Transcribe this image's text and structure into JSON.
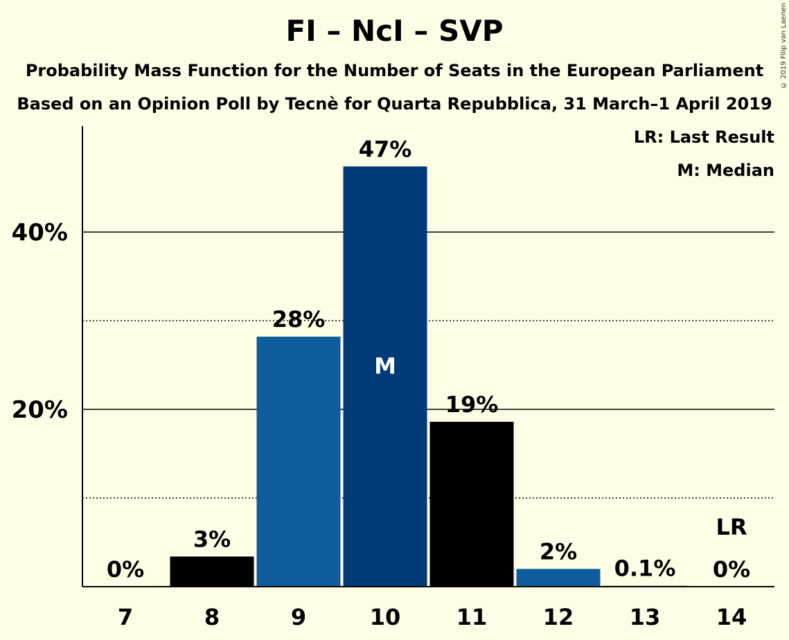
{
  "title": "FI – NcI – SVP",
  "subtitle1": "Probability Mass Function for the Number of Seats in the European Parliament",
  "subtitle2": "Based on an Opinion Poll by Tecnè for Quarta Repubblica, 31 March–1 April 2019",
  "copyright": "© 2019 Filip van Laenen",
  "legend": {
    "lr": "LR: Last Result",
    "median": "M: Median"
  },
  "colors": {
    "background": "#FFFDE6",
    "bar_black": "#000000",
    "bar_blue": "#0D5C9C",
    "bar_median": "#003A78",
    "median_text": "#FFFFFF"
  },
  "chart_data": {
    "type": "bar",
    "categories": [
      "7",
      "8",
      "9",
      "10",
      "11",
      "12",
      "13",
      "14"
    ],
    "values": [
      0,
      3.4,
      28.2,
      47.4,
      18.6,
      2.0,
      0.1,
      0
    ],
    "value_labels": [
      "0%",
      "3%",
      "28%",
      "47%",
      "19%",
      "2%",
      "0.1%",
      "0%"
    ],
    "bar_colors": [
      "#000000",
      "#000000",
      "#0D5C9C",
      "#003A78",
      "#000000",
      "#0D5C9C",
      "#0D5C9C",
      "#000000"
    ],
    "median_label": "M",
    "median_category": "10",
    "last_result_label": "LR",
    "last_result_category": "14",
    "yticks": [
      20,
      40
    ],
    "ytick_labels": [
      "20%",
      "40%"
    ],
    "dotted_gridlines": [
      10,
      30
    ],
    "ylim": [
      0,
      52
    ],
    "xlabel": "",
    "ylabel": ""
  }
}
